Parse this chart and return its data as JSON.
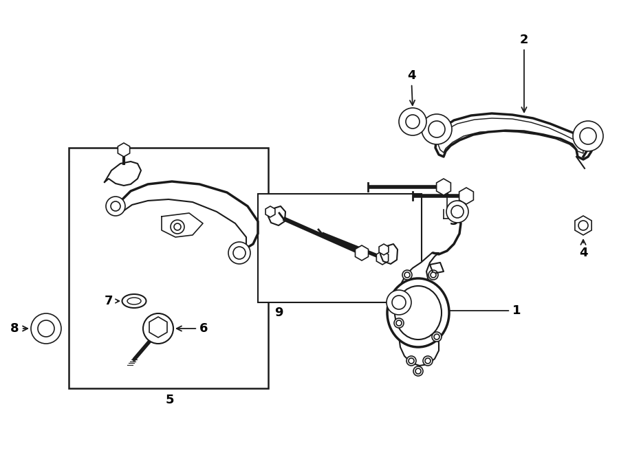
{
  "background_color": "#ffffff",
  "line_color": "#1a1a1a",
  "label_color": "#000000",
  "fig_width": 9.0,
  "fig_height": 6.62,
  "dpi": 100
}
